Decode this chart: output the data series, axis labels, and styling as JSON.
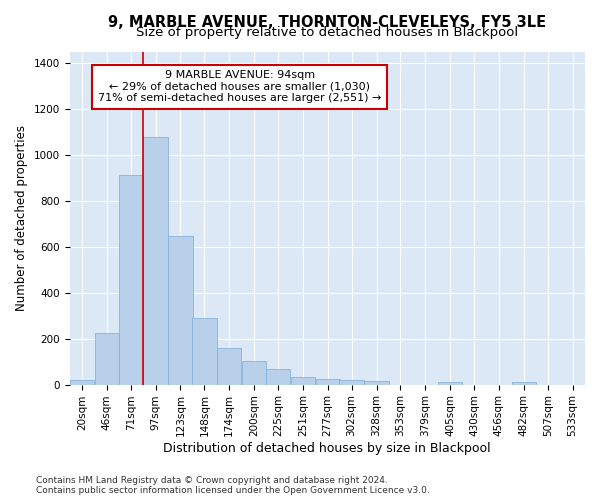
{
  "title1": "9, MARBLE AVENUE, THORNTON-CLEVELEYS, FY5 3LE",
  "title2": "Size of property relative to detached houses in Blackpool",
  "xlabel": "Distribution of detached houses by size in Blackpool",
  "ylabel": "Number of detached properties",
  "bins_left": [
    20,
    46,
    71,
    97,
    123,
    148,
    174,
    200,
    225,
    251,
    277,
    302,
    328,
    353,
    379,
    405,
    430,
    456,
    482,
    507
  ],
  "bin_width": 26,
  "counts": [
    20,
    225,
    915,
    1080,
    650,
    290,
    160,
    105,
    70,
    35,
    25,
    20,
    15,
    0,
    0,
    10,
    0,
    0,
    10,
    0
  ],
  "bar_color": "#b8d0ea",
  "bar_edge_color": "#7aadd4",
  "red_line_x": 97,
  "annotation_text": "9 MARBLE AVENUE: 94sqm\n← 29% of detached houses are smaller (1,030)\n71% of semi-detached houses are larger (2,551) →",
  "annotation_box_color": "#ffffff",
  "annotation_border_color": "#cc0000",
  "ylim": [
    0,
    1450
  ],
  "yticks": [
    0,
    200,
    400,
    600,
    800,
    1000,
    1200,
    1400
  ],
  "xlim_left": 20,
  "xlim_right": 559,
  "bg_color": "#dce8f5",
  "footnote": "Contains HM Land Registry data © Crown copyright and database right 2024.\nContains public sector information licensed under the Open Government Licence v3.0.",
  "title1_fontsize": 10.5,
  "title2_fontsize": 9.5,
  "xlabel_fontsize": 9,
  "ylabel_fontsize": 8.5,
  "tick_fontsize": 7.5,
  "annotation_fontsize": 8,
  "footnote_fontsize": 6.5,
  "xtick_labels": [
    "20sqm",
    "46sqm",
    "71sqm",
    "97sqm",
    "123sqm",
    "148sqm",
    "174sqm",
    "200sqm",
    "225sqm",
    "251sqm",
    "277sqm",
    "302sqm",
    "328sqm",
    "353sqm",
    "379sqm",
    "405sqm",
    "430sqm",
    "456sqm",
    "482sqm",
    "507sqm",
    "533sqm"
  ]
}
